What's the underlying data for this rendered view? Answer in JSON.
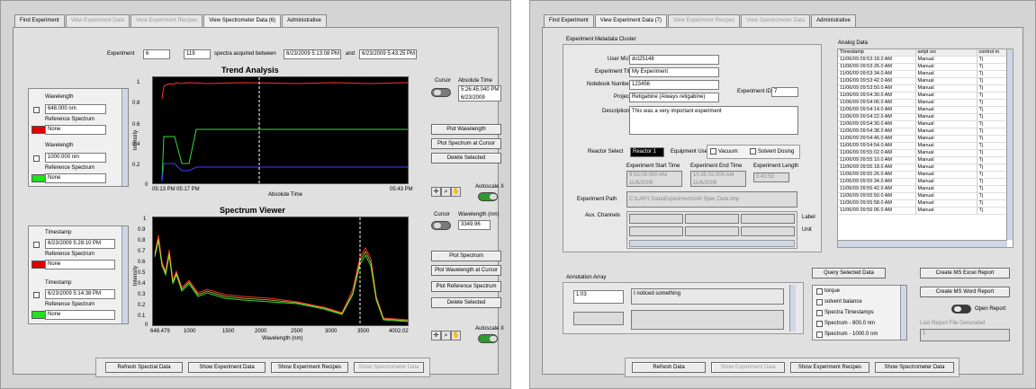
{
  "left": {
    "tabs": [
      "Find Experiment",
      "View Experiment Data",
      "View Experiment Recipes",
      "View Spectrometer Data (6)",
      "Administrative"
    ],
    "experiment_label": "Experiment",
    "experiment_value": "6",
    "spectra_count": "119",
    "spectra_text": "spectra acquired between",
    "start": "6/23/2009 5:13:08 PM",
    "and": "and",
    "end": "6/23/2009 5:43:25 PM",
    "trend": {
      "title": "Trend Analysis",
      "ylabel": "Intensity",
      "xlabel": "Absolute Time",
      "yticks": [
        "1",
        "0.8",
        "0.6",
        "0.4",
        "0.2",
        "0"
      ],
      "xticks": [
        "05:13 PM",
        "05:17 PM",
        "05:43 PM"
      ],
      "cursor_label": "Cursor",
      "abs_label": "Absolute Time",
      "abs_time": "5:26:45.040 PM",
      "abs_date": "6/23/2009",
      "buttons": [
        "Plot Wavelength",
        "Plot Spectrum at Cursor",
        "Delete Selected"
      ],
      "autoscale": "Autoscale X",
      "list": [
        {
          "title": "Wavelength",
          "value": "648.000 nm",
          "ref_label": "Reference Spectrum",
          "ref": "None",
          "color": "#e00000"
        },
        {
          "title": "Wavelength",
          "value": "1000.000 nm",
          "ref_label": "Reference Spectrum",
          "ref": "None",
          "color": "#20e020"
        }
      ]
    },
    "spectrum": {
      "title": "Spectrum Viewer",
      "ylabel": "Intensity",
      "xlabel": "Wavelength (nm)",
      "yticks": [
        "1",
        "0.9",
        "0.8",
        "0.7",
        "0.6",
        "0.5",
        "0.4",
        "0.3",
        "0.2",
        "0.1",
        "0"
      ],
      "xticks": [
        "648.479",
        "1000",
        "1500",
        "2000",
        "2500",
        "3000",
        "3500",
        "4002.02"
      ],
      "cursor_label": "Cursor",
      "wl_label": "Wavelength (nm)",
      "wl_value": "3349.96",
      "buttons": [
        "Plot Spectrum",
        "Plot Wavelength at Cursor",
        "Plot Reference Spectrum",
        "Delete Selected"
      ],
      "autoscale": "Autoscale X",
      "list": [
        {
          "title": "Timestamp",
          "value": "6/23/2009 5:28:10 PM",
          "ref_label": "Reference Spectrum",
          "ref": "None",
          "color": "#e00000"
        },
        {
          "title": "Timestamp",
          "value": "6/23/2009 5:14:38 PM",
          "ref_label": "Reference Spectrum",
          "ref": "None",
          "color": "#20e020"
        }
      ]
    },
    "bottom_buttons": [
      "Refresh Spectral Data",
      "Show Experiment Data",
      "Show Experiment Recipes",
      "Show Spectrometer Data"
    ]
  },
  "right": {
    "tabs": [
      "Find Experiment",
      "View Experiment Data (7)",
      "View Experiment Recipes",
      "View Spectrometer Data",
      "Administrative"
    ],
    "cluster_title": "Experiment Metadata Cluster",
    "user_label": "User MUDID",
    "user": "dct25148",
    "title_label": "Experiment Title",
    "title": "My Experiment",
    "notebook_label": "Notebook Number",
    "notebook": "123456",
    "expid_label": "Experiment ID",
    "expid": "7",
    "project_label": "Project",
    "project": "Retigabine (Always retigabine)",
    "desc_label": "Description",
    "desc": "This was a very important experiment",
    "reactor_label": "Reactor Select",
    "reactor": "Reactor 1",
    "equip_label": "Equipment Used",
    "vacuum": "Vacuum",
    "solvent": "Solvent Dosing",
    "start_label": "Experiment Start Time",
    "start": "9:53:09.000 AM",
    "start_date": "11/6/2009",
    "end_label": "Experiment End Time",
    "end": "10:35:02.000 AM",
    "end_date": "11/6/2009",
    "len_label": "Experiment Length",
    "len": "0:41:53",
    "path_label": "Experiment Path",
    "path": "C:\\LARY Data\\Experiments\\All Spec Data.tmp",
    "aux_label": "Aux. Channels",
    "label_lbl": "Label",
    "unit_lbl": "Unit",
    "analog": {
      "title": "Analog Data",
      "headers": [
        "Timestamp",
        "setpt src",
        "control m"
      ],
      "rows": [
        [
          "11/06/09 09:53:18.0 AM",
          "Manual",
          "Tj"
        ],
        [
          "11/06/09 09:53:26.0 AM",
          "Manual",
          "Tj"
        ],
        [
          "11/06/09 09:53:34.0 AM",
          "Manual",
          "Tj"
        ],
        [
          "11/06/09 09:53:42.0 AM",
          "Manual",
          "Tj"
        ],
        [
          "11/06/09 09:53:50.0 AM",
          "Manual",
          "Tj"
        ],
        [
          "11/06/09 09:54:30.0 AM",
          "Manual",
          "Tj"
        ],
        [
          "11/06/09 09:54:06.0 AM",
          "Manual",
          "Tj"
        ],
        [
          "11/06/09 09:54:14.0 AM",
          "Manual",
          "Tj"
        ],
        [
          "11/06/09 09:54:22.0 AM",
          "Manual",
          "Tj"
        ],
        [
          "11/06/09 09:54:30.0 AM",
          "Manual",
          "Tj"
        ],
        [
          "11/06/09 09:54:38.0 AM",
          "Manual",
          "Tj"
        ],
        [
          "11/06/09 09:54:46.0 AM",
          "Manual",
          "Tj"
        ],
        [
          "11/06/09 09:54:54.0 AM",
          "Manual",
          "Tj"
        ],
        [
          "11/06/09 09:55:02.0 AM",
          "Manual",
          "Tj"
        ],
        [
          "11/06/09 09:55:10.0 AM",
          "Manual",
          "Tj"
        ],
        [
          "11/06/09 09:55:18.0 AM",
          "Manual",
          "Tj"
        ],
        [
          "11/06/09 09:55:26.0 AM",
          "Manual",
          "Tj"
        ],
        [
          "11/06/09 09:55:34.0 AM",
          "Manual",
          "Tj"
        ],
        [
          "11/06/09 09:55:42.0 AM",
          "Manual",
          "Tj"
        ],
        [
          "11/06/09 09:55:50.0 AM",
          "Manual",
          "Tj"
        ],
        [
          "11/06/09 09:55:58.0 AM",
          "Manual",
          "Tj"
        ],
        [
          "11/06/09 09:56:06.0 AM",
          "Manual",
          "Tj"
        ]
      ]
    },
    "annotation_title": "Annotation Array",
    "ann_time": "1:03",
    "ann_text": "I noticed something",
    "checks": [
      "torque",
      "solvent balance",
      "Spectra Timestamps",
      "Spectrum - 800.0 nm",
      "Spectrum - 1000.0 nm"
    ],
    "query_btn": "Query Selected Data",
    "excel_btn": "Create MS Excel Report",
    "word_btn": "Create MS Word Report",
    "open_report": "Open Report",
    "last_label": "Last Report File Generated",
    "last_value": "1",
    "bottom_buttons": [
      "Refresh Data",
      "Show Experiment Data",
      "Show Experiment Recipes",
      "Show Spectrometer Data"
    ]
  }
}
